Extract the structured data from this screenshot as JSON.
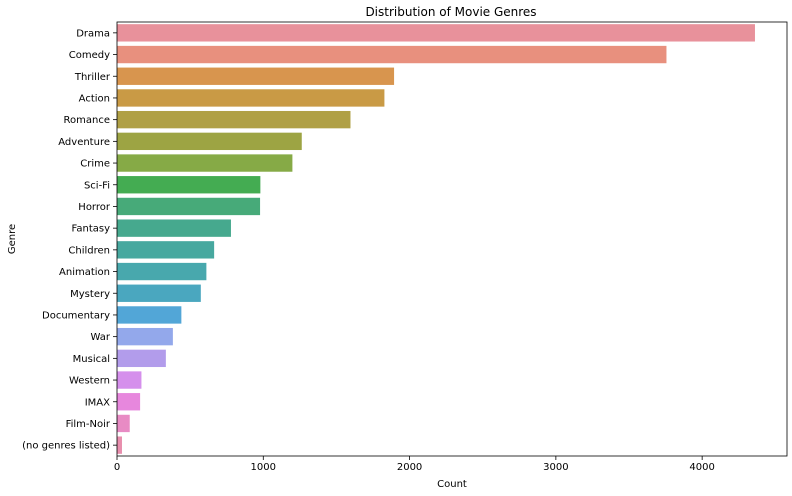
{
  "chart_data": {
    "type": "bar",
    "orientation": "horizontal",
    "title": "Distribution of Movie Genres",
    "xlabel": "Count",
    "ylabel": "Genre",
    "xlim": [
      0,
      4580
    ],
    "xticks": [
      0,
      1000,
      2000,
      3000,
      4000
    ],
    "grid": false,
    "categories": [
      "Drama",
      "Comedy",
      "Thriller",
      "Action",
      "Romance",
      "Adventure",
      "Crime",
      "Sci-Fi",
      "Horror",
      "Fantasy",
      "Children",
      "Animation",
      "Mystery",
      "Documentary",
      "War",
      "Musical",
      "Western",
      "IMAX",
      "Film-Noir",
      "(no genres listed)"
    ],
    "values": [
      4361,
      3756,
      1894,
      1828,
      1596,
      1263,
      1199,
      980,
      978,
      779,
      664,
      611,
      573,
      440,
      382,
      334,
      167,
      158,
      87,
      34
    ],
    "colors": [
      "#e8919b",
      "#e8907e",
      "#d8954e",
      "#c99a45",
      "#b0a045",
      "#9da443",
      "#86aa46",
      "#44ac52",
      "#47aa79",
      "#46a98e",
      "#47a89f",
      "#48a8ad",
      "#4aa7bf",
      "#52a6d7",
      "#93a8eb",
      "#b29ceb",
      "#d58fec",
      "#e787dd",
      "#e88bc4",
      "#e88ead"
    ]
  }
}
